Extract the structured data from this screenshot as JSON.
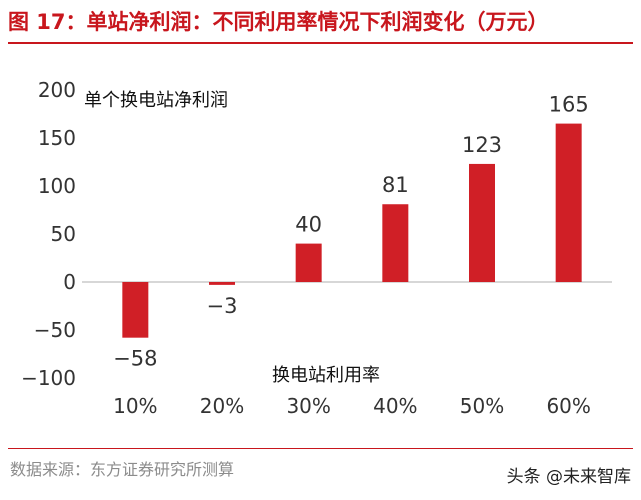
{
  "figure": {
    "title": "图 17：单站净利润：不同利用率情况下利润变化（万元）",
    "source": "数据来源：东方证券研究所测算",
    "watermark": "头条 @未来智库"
  },
  "colors": {
    "accent": "#c8161d",
    "bar": "#d01f26",
    "text": "#333333",
    "muted": "#8c8c8c"
  },
  "chart_data": {
    "type": "bar",
    "categories": [
      "10%",
      "20%",
      "30%",
      "40%",
      "50%",
      "60%"
    ],
    "values": [
      -58,
      -3,
      40,
      81,
      123,
      165
    ],
    "value_labels": [
      "−58",
      "−3",
      "40",
      "81",
      "123",
      "165"
    ],
    "series": [
      {
        "values": [
          -58,
          -3,
          40,
          81,
          123,
          165
        ]
      }
    ],
    "ylabel": "单个换电站净利润",
    "xlabel": "换电站利用率",
    "ylim": [
      -100,
      200
    ],
    "yticks": [
      200,
      150,
      100,
      50,
      0,
      -50,
      -100
    ],
    "ytick_labels": [
      "200",
      "150",
      "100",
      "50",
      "0",
      "−50",
      "−100"
    ],
    "grid": false,
    "legend": "none"
  }
}
